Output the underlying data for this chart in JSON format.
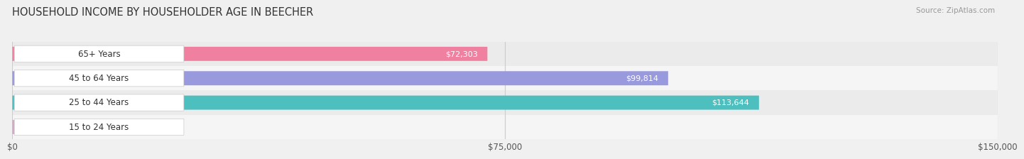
{
  "title": "HOUSEHOLD INCOME BY HOUSEHOLDER AGE IN BEECHER",
  "source": "Source: ZipAtlas.com",
  "categories": [
    "15 to 24 Years",
    "25 to 44 Years",
    "45 to 64 Years",
    "65+ Years"
  ],
  "values": [
    0,
    113644,
    99814,
    72303
  ],
  "bar_colors": [
    "#d4a8c7",
    "#4dbfbf",
    "#9999dd",
    "#f080a0"
  ],
  "xlim": [
    0,
    150000
  ],
  "xtick_labels": [
    "$0",
    "$75,000",
    "$150,000"
  ],
  "xtick_vals": [
    0,
    75000,
    150000
  ],
  "bar_height": 0.58,
  "bg_color": "#f0f0f0",
  "row_colors": [
    "#f5f5f5",
    "#ebebeb",
    "#f5f5f5",
    "#ebebeb"
  ],
  "title_fontsize": 10.5,
  "tick_fontsize": 8.5,
  "label_fontsize": 8.5,
  "value_fontsize": 8.0
}
